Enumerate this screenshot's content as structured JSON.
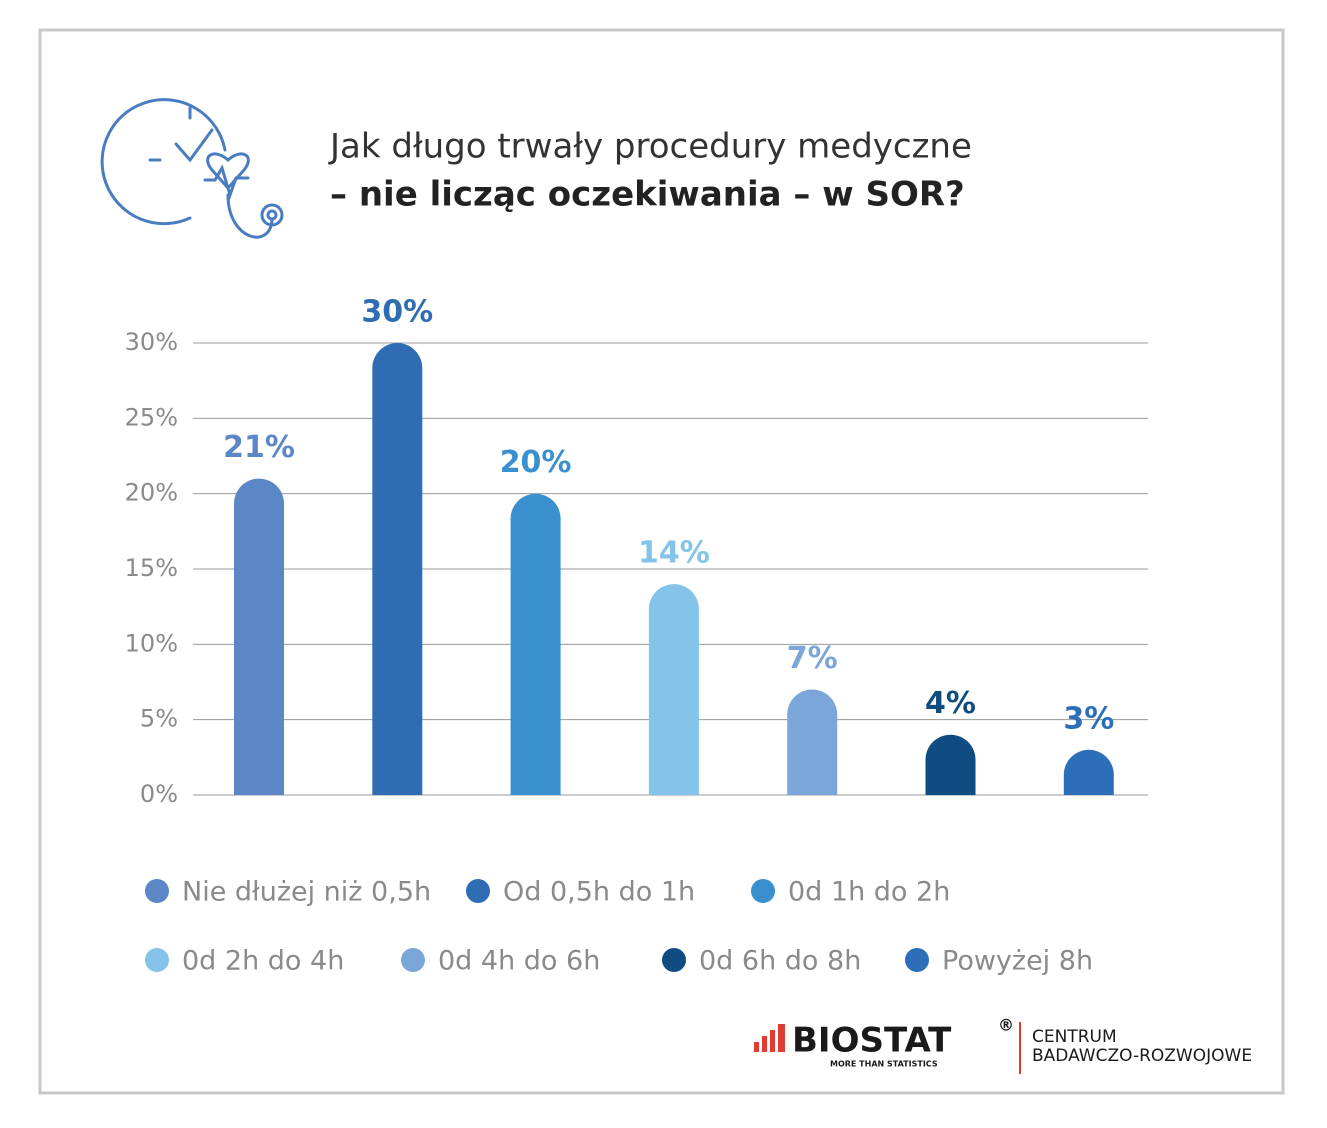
{
  "chart_data": {
    "type": "bar",
    "title": "Jak długo trwały procedury medyczne",
    "subtitle": "– nie licząc oczekiwania – w SOR?",
    "categories": [
      "Nie dłużej niż 0,5h",
      "Od 0,5h do 1h",
      "0d 1h do 2h",
      "0d 2h do 4h",
      "0d 4h do 6h",
      "0d 6h do 8h",
      "Powyżej 8h"
    ],
    "values": [
      21,
      30,
      20,
      14,
      7,
      4,
      3
    ],
    "value_labels": [
      "21%",
      "30%",
      "20%",
      "14%",
      "7%",
      "4%",
      "3%"
    ],
    "colors": [
      "#5b87c7",
      "#2e6db4",
      "#3a90cf",
      "#85c4ea",
      "#7aa6d9",
      "#0f4c81",
      "#2c6fb8"
    ],
    "ylim": [
      0,
      30
    ],
    "yticks": [
      {
        "value": 0,
        "label": "0%"
      },
      {
        "value": 5,
        "label": "5%"
      },
      {
        "value": 10,
        "label": "10%"
      },
      {
        "value": 15,
        "label": "15%"
      },
      {
        "value": 20,
        "label": "20%"
      },
      {
        "value": 25,
        "label": "25%"
      },
      {
        "value": 30,
        "label": "30%"
      }
    ],
    "grid": true
  },
  "branding": {
    "name": "BIOSTAT",
    "mark": "®",
    "tagline": "MORE THAN STATISTICS",
    "unit_line1": "CENTRUM",
    "unit_line2": "BADAWCZO-ROZWOJOWE"
  }
}
